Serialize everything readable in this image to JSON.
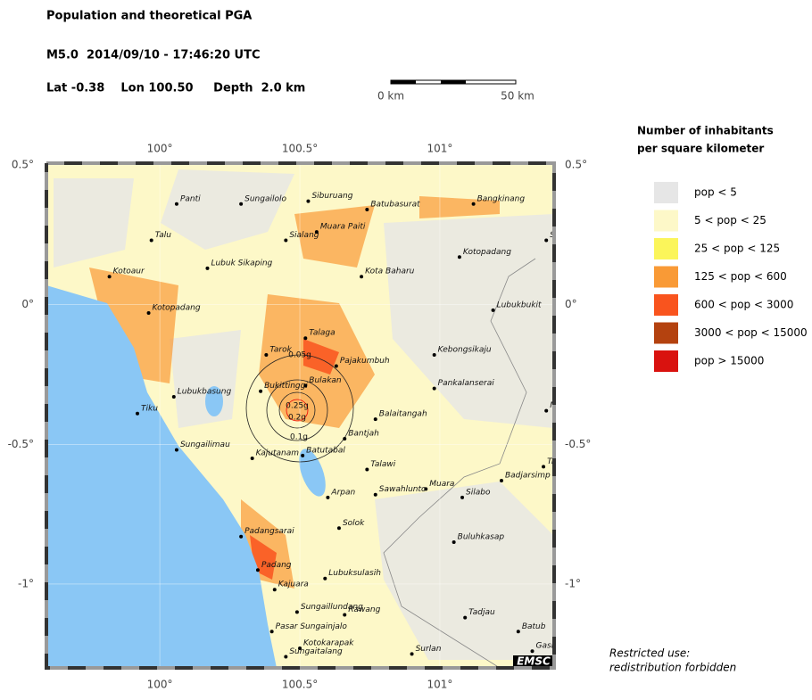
{
  "header": {
    "title": "Population and theoretical PGA",
    "event": "M5.0  2014/09/10 - 17:46:20 UTC",
    "location": "Lat -0.38    Lon 100.50     Depth  2.0 km"
  },
  "scale_bar": {
    "start_label": "0 km",
    "end_label": "50 km"
  },
  "map": {
    "xlim": [
      99.595,
      101.408
    ],
    "ylim": [
      -1.3,
      0.506
    ],
    "xticks": [
      {
        "value": 100,
        "label": "100°"
      },
      {
        "value": 100.5,
        "label": "100.5°"
      },
      {
        "value": 101,
        "label": "101°"
      }
    ],
    "yticks": [
      {
        "value": 0.5,
        "label": "0.5°"
      },
      {
        "value": 0,
        "label": "0°"
      },
      {
        "value": -0.5,
        "label": "-0.5°"
      },
      {
        "value": -1,
        "label": "-1°"
      }
    ],
    "cities": [
      {
        "name": "Panti",
        "lon": 100.06,
        "lat": 0.36
      },
      {
        "name": "Sungailolo",
        "lon": 100.29,
        "lat": 0.36
      },
      {
        "name": "Siburuang",
        "lon": 100.53,
        "lat": 0.37
      },
      {
        "name": "Batubasurat",
        "lon": 100.74,
        "lat": 0.34
      },
      {
        "name": "Bangkinang",
        "lon": 101.12,
        "lat": 0.36
      },
      {
        "name": "S",
        "lon": 101.38,
        "lat": 0.23
      },
      {
        "name": "Talu",
        "lon": 99.97,
        "lat": 0.23
      },
      {
        "name": "Sialang",
        "lon": 100.45,
        "lat": 0.23
      },
      {
        "name": "Muara Paiti",
        "lon": 100.56,
        "lat": 0.26
      },
      {
        "name": "Kotopadang",
        "lon": 101.07,
        "lat": 0.17
      },
      {
        "name": "Lubuk Sikaping",
        "lon": 100.17,
        "lat": 0.13
      },
      {
        "name": "Kotoaur",
        "lon": 99.82,
        "lat": 0.1
      },
      {
        "name": "Kota Baharu",
        "lon": 100.72,
        "lat": 0.1
      },
      {
        "name": "Lubukbukit",
        "lon": 101.19,
        "lat": -0.02
      },
      {
        "name": "Kotopadang",
        "lon": 99.96,
        "lat": -0.03
      },
      {
        "name": "Talaga",
        "lon": 100.52,
        "lat": -0.12
      },
      {
        "name": "Tarok",
        "lon": 100.38,
        "lat": -0.18
      },
      {
        "name": "Kebongsikaju",
        "lon": 100.98,
        "lat": -0.18
      },
      {
        "name": "Pajakumbuh",
        "lon": 100.63,
        "lat": -0.22
      },
      {
        "name": "Lubukbasung",
        "lon": 100.05,
        "lat": -0.33
      },
      {
        "name": "Bukittinggi",
        "lon": 100.36,
        "lat": -0.31
      },
      {
        "name": "Bulakan",
        "lon": 100.52,
        "lat": -0.29
      },
      {
        "name": "Pankalanserai",
        "lon": 100.98,
        "lat": -0.3
      },
      {
        "name": "Mu",
        "lon": 101.38,
        "lat": -0.38
      },
      {
        "name": "Tiku",
        "lon": 99.92,
        "lat": -0.39
      },
      {
        "name": "Balaitangah",
        "lon": 100.77,
        "lat": -0.41
      },
      {
        "name": "Bantjah",
        "lon": 100.66,
        "lat": -0.48
      },
      {
        "name": "Sungailimau",
        "lon": 100.06,
        "lat": -0.52
      },
      {
        "name": "Batutabal",
        "lon": 100.51,
        "lat": -0.54
      },
      {
        "name": "Kajutanam",
        "lon": 100.33,
        "lat": -0.55
      },
      {
        "name": "Talawi",
        "lon": 100.74,
        "lat": -0.59
      },
      {
        "name": "Tr",
        "lon": 101.37,
        "lat": -0.58
      },
      {
        "name": "Badjarsimp",
        "lon": 101.22,
        "lat": -0.63
      },
      {
        "name": "Muara",
        "lon": 100.95,
        "lat": -0.66
      },
      {
        "name": "Sawahlunto",
        "lon": 100.77,
        "lat": -0.68
      },
      {
        "name": "Silabo",
        "lon": 101.08,
        "lat": -0.69
      },
      {
        "name": "Arpan",
        "lon": 100.6,
        "lat": -0.69
      },
      {
        "name": "Solok",
        "lon": 100.64,
        "lat": -0.8
      },
      {
        "name": "Padangsarai",
        "lon": 100.29,
        "lat": -0.83
      },
      {
        "name": "Buluhkasap",
        "lon": 101.05,
        "lat": -0.85
      },
      {
        "name": "Padang",
        "lon": 100.35,
        "lat": -0.95
      },
      {
        "name": "Lubuksulasih",
        "lon": 100.59,
        "lat": -0.98
      },
      {
        "name": "Kajuara",
        "lon": 100.41,
        "lat": -1.02
      },
      {
        "name": "Sungaillundang",
        "lon": 100.49,
        "lat": -1.1
      },
      {
        "name": "Rawang",
        "lon": 100.66,
        "lat": -1.11
      },
      {
        "name": "Tadjau",
        "lon": 101.09,
        "lat": -1.12
      },
      {
        "name": "Batub",
        "lon": 101.28,
        "lat": -1.17
      },
      {
        "name": "Pasar Sungainjalo",
        "lon": 100.4,
        "lat": -1.17
      },
      {
        "name": "Kotokarapak",
        "lon": 100.5,
        "lat": -1.23
      },
      {
        "name": "Sungaitalang",
        "lon": 100.45,
        "lat": -1.26
      },
      {
        "name": "Surlan",
        "lon": 100.9,
        "lat": -1.25
      },
      {
        "name": "Gasi",
        "lon": 101.33,
        "lat": -1.24
      }
    ],
    "pga_contours": [
      {
        "label": "0.05g",
        "value": 0.05
      },
      {
        "label": "0.25g",
        "value": 0.25
      },
      {
        "label": "0.2g",
        "value": 0.2
      },
      {
        "label": "0.1g",
        "value": 0.1
      }
    ]
  },
  "legend": {
    "title": [
      "Number of inhabitants",
      "per square kilometer"
    ],
    "items": [
      {
        "label": "pop < 5",
        "color": "#e6e6e6"
      },
      {
        "label": "5 < pop < 25",
        "color": "#fdf8c8"
      },
      {
        "label": "25 < pop < 125",
        "color": "#fbf55a"
      },
      {
        "label": "125 < pop < 600",
        "color": "#f99a36"
      },
      {
        "label": "600 < pop < 3000",
        "color": "#f9541e"
      },
      {
        "label": "3000 < pop < 15000",
        "color": "#b4420f"
      },
      {
        "label": "pop > 15000",
        "color": "#d9120f"
      }
    ]
  },
  "footer": {
    "notice": [
      "Restricted use:",
      "redistribution forbidden"
    ],
    "logo": "EMSC"
  }
}
